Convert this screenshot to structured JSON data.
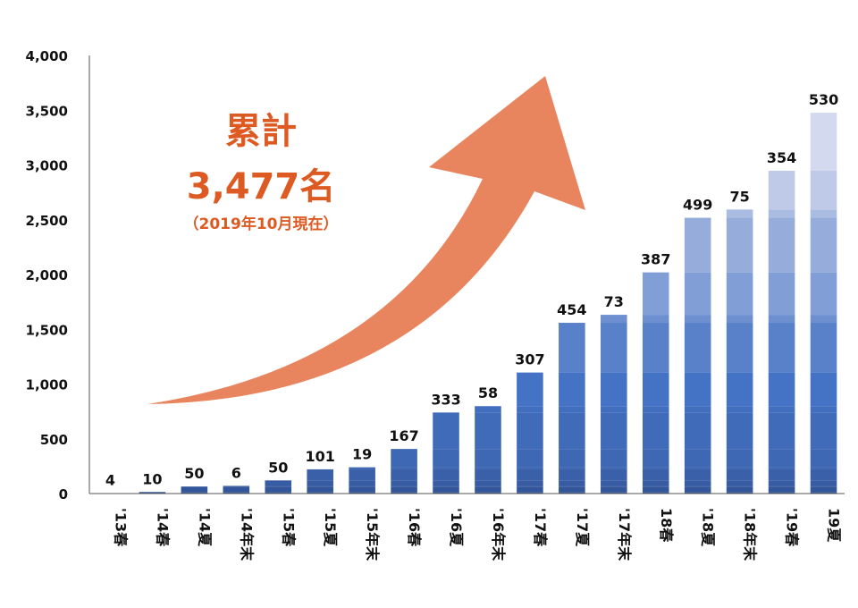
{
  "chart_data": {
    "type": "bar",
    "stacked": true,
    "categories": [
      "'13春",
      "'14春",
      "'14夏",
      "'14年末",
      "'15春",
      "'15夏",
      "'15年末",
      "'16春",
      "'16夏",
      "'16年末",
      "'17春",
      "'17夏",
      "'17年末",
      "18春",
      "'18夏",
      "'18年末",
      "'19春",
      "19夏"
    ],
    "increments": [
      4,
      10,
      50,
      6,
      50,
      101,
      19,
      167,
      333,
      58,
      307,
      454,
      73,
      387,
      499,
      75,
      354,
      530
    ],
    "yticks": [
      "0",
      "500",
      "1,000",
      "1,500",
      "2,000",
      "2,500",
      "3,000",
      "3,500",
      "4,000"
    ],
    "ylim": [
      0,
      4000
    ],
    "grid": false,
    "colors": {
      "dark": "#2f4e8f",
      "mid": "#4472c4",
      "light": "#d3d9ee"
    }
  },
  "callout": {
    "title": "累計",
    "total": "3,477名",
    "note": "（2019年10月現在）",
    "color": "#dd5a22",
    "arrow_color": "#e8855e"
  }
}
